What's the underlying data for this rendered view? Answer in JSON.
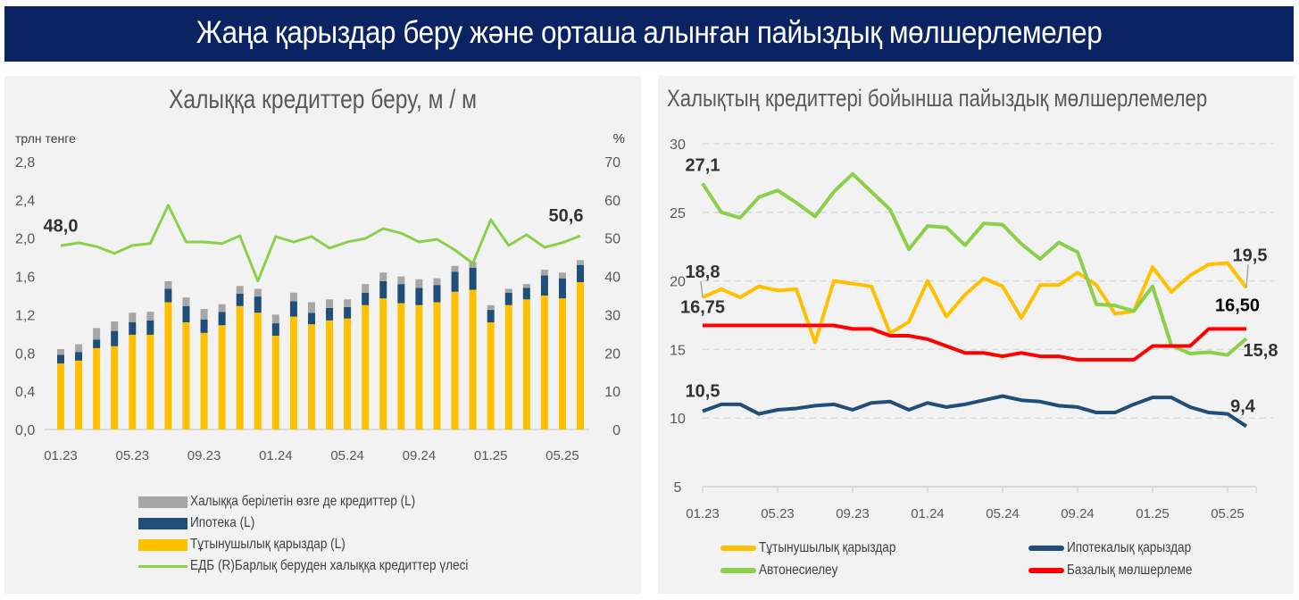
{
  "banner": {
    "title": "Жаңа қарыздар беру және орташа алынған пайыздық мөлшерлемелер"
  },
  "colors": {
    "banner_bg": "#0a2463",
    "consumer": "#ffc000",
    "mortgage": "#1f4e79",
    "other": "#a6a6a6",
    "share_line": "#8bd04a",
    "auto": "#8bd04a",
    "base_rate": "#ff0000"
  },
  "left_panel": {
    "title": "Халыққа кредиттер беру, м / м",
    "legend": [
      {
        "label": "Халыққа берілетін өзге де кредиттер (L)",
        "kind": "box",
        "color_key": "other"
      },
      {
        "label": "Ипотека (L)",
        "kind": "box",
        "color_key": "mortgage"
      },
      {
        "label": "Тұтынушылық қарыздар (L)",
        "kind": "box",
        "color_key": "consumer"
      },
      {
        "label": "ЕДБ (R)Барлық беруден халыққа кредиттер үлесі",
        "kind": "line",
        "color_key": "share_line"
      }
    ]
  },
  "right_panel": {
    "title": "Халықтың кредиттері бойынша пайыздық мөлшерлемелер",
    "legend": [
      {
        "label": "Тұтынушылық қарыздар",
        "color_key": "consumer"
      },
      {
        "label": "Ипотекалық қарыздар",
        "color_key": "mortgage"
      },
      {
        "label": "Автонесиелеу",
        "color_key": "auto"
      },
      {
        "label": "Базалық мөлшерлеме",
        "color_key": "base_rate"
      }
    ]
  },
  "chart_data": [
    {
      "type": "bar",
      "stacked": true,
      "title": "Халыққа кредиттер беру, м / м",
      "ylabel": "трлн тенге",
      "y2label": "%",
      "ylim": [
        0,
        2.8
      ],
      "y2lim": [
        0,
        70
      ],
      "yticks": [
        "0,0",
        "0,4",
        "0,8",
        "1,2",
        "1,6",
        "2,0",
        "2,4",
        "2,8"
      ],
      "y2ticks": [
        "0",
        "10",
        "20",
        "30",
        "40",
        "50",
        "60",
        "70"
      ],
      "x": [
        "01.23",
        "02.23",
        "03.23",
        "04.23",
        "05.23",
        "06.23",
        "07.23",
        "08.23",
        "09.23",
        "10.23",
        "11.23",
        "12.23",
        "01.24",
        "02.24",
        "03.24",
        "04.24",
        "05.24",
        "06.24",
        "07.24",
        "08.24",
        "09.24",
        "10.24",
        "11.24",
        "12.24",
        "01.25",
        "02.25",
        "03.25",
        "04.25",
        "05.25",
        "06.25"
      ],
      "xtick_labels": [
        "01.23",
        "05.23",
        "09.23",
        "01.24",
        "05.24",
        "09.24",
        "01.25",
        "05.25"
      ],
      "series": [
        {
          "name": "Тұтынушылық қарыздар (L)",
          "axis": "left",
          "kind": "bar",
          "values": [
            0.69,
            0.72,
            0.85,
            0.87,
            0.99,
            0.99,
            1.33,
            1.12,
            1.01,
            1.09,
            1.29,
            1.22,
            0.98,
            1.18,
            1.1,
            1.14,
            1.16,
            1.3,
            1.37,
            1.32,
            1.3,
            1.33,
            1.44,
            1.46,
            1.12,
            1.3,
            1.36,
            1.4,
            1.37,
            1.54
          ]
        },
        {
          "name": "Ипотека (L)",
          "axis": "left",
          "kind": "bar",
          "values": [
            0.09,
            0.09,
            0.09,
            0.16,
            0.13,
            0.15,
            0.14,
            0.17,
            0.14,
            0.14,
            0.13,
            0.17,
            0.13,
            0.16,
            0.12,
            0.13,
            0.12,
            0.13,
            0.18,
            0.2,
            0.18,
            0.18,
            0.21,
            0.23,
            0.13,
            0.13,
            0.12,
            0.21,
            0.21,
            0.18
          ]
        },
        {
          "name": "Халыққа берілетін өзге де кредиттер (L)",
          "axis": "left",
          "kind": "bar",
          "values": [
            0.06,
            0.08,
            0.12,
            0.1,
            0.1,
            0.09,
            0.08,
            0.09,
            0.11,
            0.08,
            0.08,
            0.08,
            0.09,
            0.09,
            0.11,
            0.09,
            0.08,
            0.09,
            0.09,
            0.08,
            0.09,
            0.07,
            0.06,
            0.06,
            0.05,
            0.04,
            0.04,
            0.06,
            0.06,
            0.05
          ]
        },
        {
          "name": "ЕДБ (R)Барлық беруден халыққа кредиттер үлесі",
          "axis": "right",
          "kind": "line",
          "values": [
            48.0,
            48.8,
            47.8,
            46.0,
            48.1,
            48.6,
            58.6,
            49.0,
            49.0,
            48.6,
            50.6,
            38.8,
            50.4,
            49.0,
            50.4,
            47.4,
            49.0,
            49.9,
            52.5,
            51.3,
            49.0,
            49.7,
            46.9,
            43.4,
            54.8,
            48.1,
            50.9,
            47.6,
            48.8,
            50.6
          ]
        }
      ],
      "annotations": [
        {
          "text": "48,0",
          "series": 3,
          "index": 0
        },
        {
          "text": "50,6",
          "series": 3,
          "index": 29
        }
      ],
      "legend_position": "bottom",
      "grid": false
    },
    {
      "type": "line",
      "title": "Халықтың кредиттері бойынша пайыздық мөлшерлемелер",
      "ylim": [
        5,
        30
      ],
      "yticks": [
        "5",
        "10",
        "15",
        "20",
        "25",
        "30"
      ],
      "x": [
        "01.23",
        "02.23",
        "03.23",
        "04.23",
        "05.23",
        "06.23",
        "07.23",
        "08.23",
        "09.23",
        "10.23",
        "11.23",
        "12.23",
        "01.24",
        "02.24",
        "03.24",
        "04.24",
        "05.24",
        "06.24",
        "07.24",
        "08.24",
        "09.24",
        "10.24",
        "11.24",
        "12.24",
        "01.25",
        "02.25",
        "03.25",
        "04.25",
        "05.25",
        "06.25"
      ],
      "xtick_labels": [
        "01.23",
        "05.23",
        "09.23",
        "01.24",
        "05.24",
        "09.24",
        "01.25",
        "05.25"
      ],
      "series": [
        {
          "name": "Тұтынушылық қарыздар",
          "color_key": "consumer",
          "values": [
            18.8,
            19.4,
            18.8,
            19.6,
            19.3,
            19.4,
            15.5,
            20.0,
            19.8,
            19.6,
            16.2,
            17.0,
            20.0,
            17.4,
            19.0,
            20.2,
            19.6,
            17.3,
            19.7,
            19.7,
            20.6,
            19.7,
            17.6,
            17.8,
            21.0,
            19.2,
            20.4,
            21.2,
            21.3,
            19.5
          ]
        },
        {
          "name": "Ипотекалық қарыздар",
          "color_key": "mortgage",
          "values": [
            10.5,
            11.0,
            11.0,
            10.3,
            10.6,
            10.7,
            10.9,
            11.0,
            10.6,
            11.1,
            11.2,
            10.6,
            11.1,
            10.8,
            11.0,
            11.3,
            11.6,
            11.3,
            11.2,
            10.9,
            10.8,
            10.4,
            10.4,
            11.0,
            11.5,
            11.5,
            10.8,
            10.4,
            10.3,
            9.4
          ]
        },
        {
          "name": "Автонесиелеу",
          "color_key": "auto",
          "values": [
            27.1,
            25.0,
            24.6,
            26.1,
            26.6,
            25.7,
            24.7,
            26.5,
            27.8,
            26.5,
            25.2,
            22.3,
            24.0,
            23.9,
            22.6,
            24.2,
            24.1,
            22.7,
            21.6,
            22.8,
            22.1,
            18.3,
            18.2,
            17.8,
            19.6,
            15.3,
            14.7,
            14.8,
            14.6,
            15.8
          ]
        },
        {
          "name": "Базалық мөлшерлеме",
          "color_key": "base_rate",
          "values": [
            16.75,
            16.75,
            16.75,
            16.75,
            16.75,
            16.75,
            16.75,
            16.75,
            16.5,
            16.5,
            16.0,
            16.0,
            15.75,
            15.25,
            14.75,
            14.75,
            14.5,
            14.75,
            14.5,
            14.5,
            14.25,
            14.25,
            14.25,
            14.25,
            15.25,
            15.25,
            15.25,
            16.5,
            16.5,
            16.5
          ]
        }
      ],
      "annotations": [
        {
          "text": "27,1",
          "series": 2,
          "index": 0
        },
        {
          "text": "18,8",
          "series": 0,
          "index": 0
        },
        {
          "text": "16,75",
          "series": 3,
          "index": 0
        },
        {
          "text": "10,5",
          "series": 1,
          "index": 0
        },
        {
          "text": "19,5",
          "series": 0,
          "index": 29
        },
        {
          "text": "16,50",
          "series": 3,
          "index": 29
        },
        {
          "text": "15,8",
          "series": 2,
          "index": 29
        },
        {
          "text": "9,4",
          "series": 1,
          "index": 29
        }
      ],
      "legend_position": "bottom",
      "grid": true
    }
  ]
}
